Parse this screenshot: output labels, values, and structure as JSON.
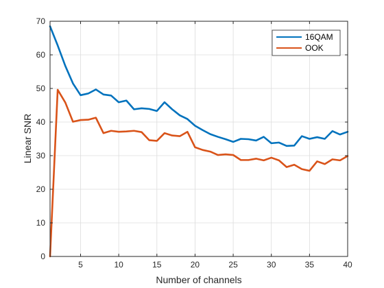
{
  "chart_data": {
    "type": "line",
    "title": "",
    "xlabel": "Number of channels",
    "ylabel": "Linear SNR",
    "xlim": [
      1,
      40
    ],
    "ylim": [
      0,
      70
    ],
    "xticks": [
      5,
      10,
      15,
      20,
      25,
      30,
      35,
      40
    ],
    "yticks": [
      0,
      10,
      20,
      30,
      40,
      50,
      60,
      70
    ],
    "grid": true,
    "legend_position": "top-right",
    "x": [
      1,
      2,
      3,
      4,
      5,
      6,
      7,
      8,
      9,
      10,
      11,
      12,
      13,
      14,
      15,
      16,
      17,
      18,
      19,
      20,
      21,
      22,
      23,
      24,
      25,
      26,
      27,
      28,
      29,
      30,
      31,
      32,
      33,
      34,
      35,
      36,
      37,
      38,
      39,
      40
    ],
    "series": [
      {
        "name": "16QAM",
        "color": "#0072BD",
        "values": [
          68.5,
          62.8,
          56.7,
          51.5,
          48.0,
          48.5,
          49.7,
          48.2,
          47.9,
          45.9,
          46.4,
          43.8,
          44.1,
          43.9,
          43.3,
          45.9,
          43.8,
          42.0,
          40.9,
          38.9,
          37.6,
          36.4,
          35.6,
          34.9,
          34.1,
          35.0,
          34.9,
          34.5,
          35.6,
          33.7,
          33.9,
          32.9,
          33.0,
          35.8,
          35.0,
          35.5,
          35.0,
          37.3,
          36.3,
          37.1
        ]
      },
      {
        "name": "OOK",
        "color": "#D95319",
        "values": [
          0.0,
          49.6,
          45.8,
          40.1,
          40.6,
          40.7,
          41.3,
          36.7,
          37.4,
          37.1,
          37.2,
          37.4,
          37.0,
          34.6,
          34.4,
          36.7,
          36.0,
          35.8,
          37.1,
          32.5,
          31.7,
          31.2,
          30.2,
          30.4,
          30.2,
          28.7,
          28.7,
          29.1,
          28.6,
          29.4,
          28.6,
          26.6,
          27.3,
          26.0,
          25.5,
          28.3,
          27.5,
          28.9,
          28.6,
          29.9
        ]
      }
    ]
  }
}
